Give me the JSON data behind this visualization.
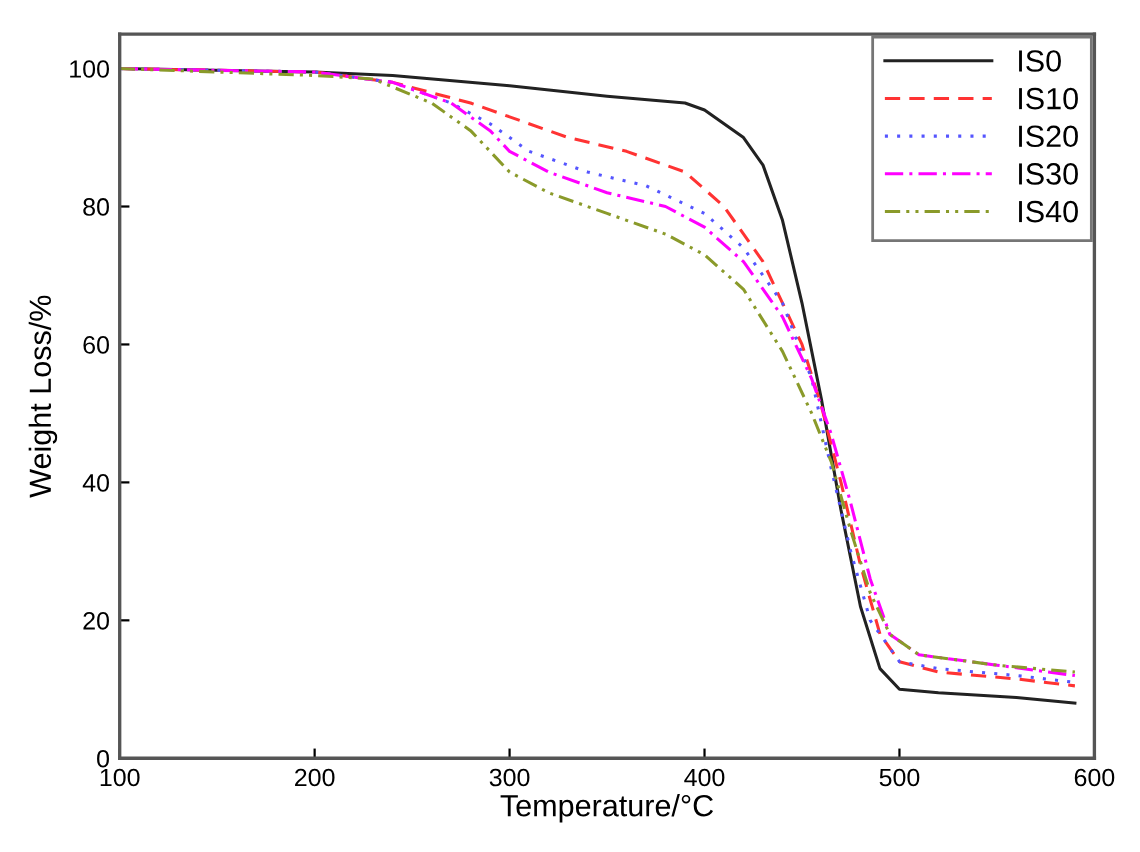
{
  "chart_data": {
    "type": "line",
    "xlabel": "Temperature/°C",
    "ylabel": "Weight Loss/%",
    "xlim": [
      100,
      600
    ],
    "ylim": [
      0,
      105
    ],
    "xticks": [
      100,
      200,
      300,
      400,
      500,
      600
    ],
    "yticks": [
      0,
      20,
      40,
      60,
      80,
      100
    ],
    "grid": false,
    "legend": "top right",
    "series": [
      {
        "name": "IS0",
        "color": "#222222",
        "line_style": "solid",
        "x": [
          100,
          200,
          240,
          300,
          350,
          390,
          400,
          420,
          430,
          440,
          450,
          460,
          470,
          480,
          490,
          500,
          520,
          560,
          590
        ],
        "values": [
          100,
          99.5,
          99,
          97.5,
          96,
          95,
          94,
          90,
          86,
          78,
          66,
          52,
          36,
          22,
          13,
          10,
          9.5,
          8.8,
          8
        ]
      },
      {
        "name": "IS10",
        "color": "#ff3333",
        "line_style": "dashed",
        "x": [
          100,
          200,
          240,
          280,
          300,
          330,
          360,
          390,
          410,
          430,
          450,
          460,
          470,
          480,
          490,
          500,
          520,
          560,
          590
        ],
        "values": [
          100,
          99.5,
          98,
          95,
          93,
          90,
          88,
          85,
          80,
          72,
          60,
          51,
          40,
          28,
          18,
          14,
          12.5,
          11.5,
          10.5
        ]
      },
      {
        "name": "IS20",
        "color": "#5555ff",
        "line_style": "dotted",
        "x": [
          100,
          200,
          240,
          270,
          290,
          310,
          340,
          370,
          400,
          420,
          440,
          455,
          465,
          475,
          485,
          500,
          520,
          560,
          590
        ],
        "values": [
          100,
          99.5,
          98,
          95,
          92,
          88,
          85,
          83,
          79,
          74,
          66,
          55,
          42,
          30,
          20,
          14,
          13,
          12,
          11
        ]
      },
      {
        "name": "IS30",
        "color": "#ff00ff",
        "line_style": "dashdot",
        "x": [
          100,
          200,
          240,
          270,
          290,
          300,
          320,
          350,
          380,
          400,
          420,
          440,
          455,
          465,
          475,
          485,
          495,
          510,
          550,
          590
        ],
        "values": [
          100,
          99.5,
          98,
          95,
          91,
          88,
          85,
          82,
          80,
          77,
          72,
          64,
          55,
          47,
          37,
          26,
          18,
          15,
          13.5,
          12
        ]
      },
      {
        "name": "IS40",
        "color": "#8a9a2a",
        "line_style": "dashdotdot",
        "x": [
          100,
          200,
          230,
          260,
          280,
          300,
          320,
          350,
          380,
          400,
          420,
          440,
          455,
          465,
          475,
          485,
          495,
          510,
          550,
          590
        ],
        "values": [
          100,
          99,
          98.5,
          95,
          91,
          85,
          82,
          79,
          76,
          73,
          68,
          59,
          50,
          43,
          33,
          24,
          18,
          15,
          13.5,
          12.5
        ]
      }
    ]
  }
}
